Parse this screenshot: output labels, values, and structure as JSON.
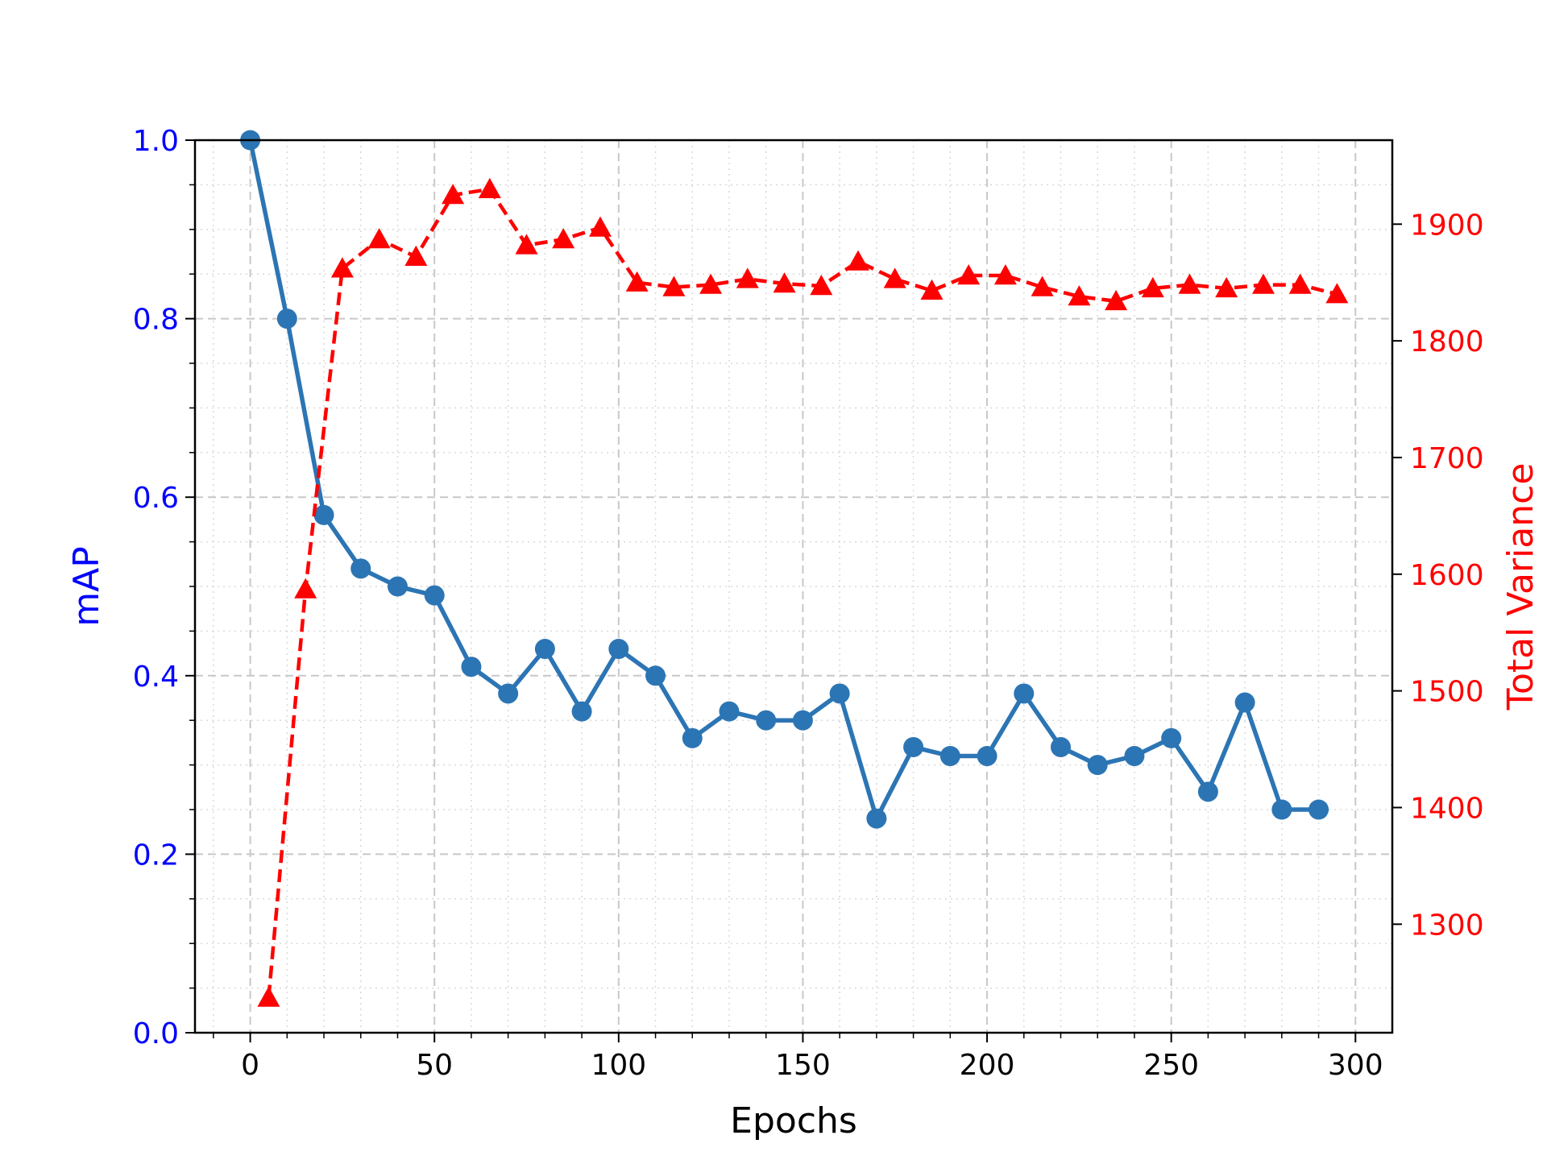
{
  "chart_data": {
    "type": "line",
    "xlabel": "Epochs",
    "ylabel_left": "mAP",
    "ylabel_right": "Total Variance",
    "xlim": [
      -15,
      310
    ],
    "ylim_left": [
      0.0,
      1.0
    ],
    "ylim_right": [
      1207,
      1972
    ],
    "x_ticks": [
      0,
      50,
      100,
      150,
      200,
      250,
      300
    ],
    "x_tick_labels": [
      "0",
      "50",
      "100",
      "150",
      "200",
      "250",
      "300"
    ],
    "y_left_ticks": [
      0.0,
      0.2,
      0.4,
      0.6,
      0.8,
      1.0
    ],
    "y_left_tick_labels": [
      "0.0",
      "0.2",
      "0.4",
      "0.6",
      "0.8",
      "1.0"
    ],
    "y_right_ticks": [
      1300,
      1400,
      1500,
      1600,
      1700,
      1800,
      1900
    ],
    "y_right_tick_labels": [
      "1300",
      "1400",
      "1500",
      "1600",
      "1700",
      "1800",
      "1900"
    ],
    "grid": true,
    "colors": {
      "left_axis": "#0000ff",
      "right_axis": "#ff0000",
      "map_series": "#2c75b4",
      "variance_series": "#ff0000",
      "grid": "#c8c8c8"
    },
    "series": [
      {
        "axis": "left",
        "marker": "circle",
        "linestyle": "solid",
        "x": [
          0,
          10,
          20,
          30,
          40,
          50,
          60,
          70,
          80,
          90,
          100,
          110,
          120,
          130,
          140,
          150,
          160,
          170,
          180,
          190,
          200,
          210,
          220,
          230,
          240,
          250,
          260,
          270,
          280,
          290
        ],
        "values": [
          1.0,
          0.8,
          0.58,
          0.52,
          0.5,
          0.49,
          0.41,
          0.38,
          0.43,
          0.36,
          0.43,
          0.4,
          0.33,
          0.36,
          0.35,
          0.35,
          0.38,
          0.24,
          0.32,
          0.31,
          0.31,
          0.38,
          0.32,
          0.3,
          0.31,
          0.33,
          0.27,
          0.37,
          0.25,
          0.25
        ]
      },
      {
        "axis": "right",
        "marker": "triangle",
        "linestyle": "dashed",
        "x": [
          5,
          15,
          25,
          35,
          45,
          55,
          65,
          75,
          85,
          95,
          105,
          115,
          125,
          135,
          145,
          155,
          165,
          175,
          185,
          195,
          205,
          215,
          225,
          235,
          245,
          255,
          265,
          275,
          285,
          295
        ],
        "values": [
          1237,
          1587,
          1862,
          1887,
          1872,
          1925,
          1930,
          1882,
          1887,
          1897,
          1850,
          1846,
          1848,
          1853,
          1849,
          1847,
          1868,
          1853,
          1843,
          1856,
          1856,
          1846,
          1838,
          1834,
          1845,
          1848,
          1845,
          1848,
          1848,
          1840
        ]
      }
    ]
  }
}
